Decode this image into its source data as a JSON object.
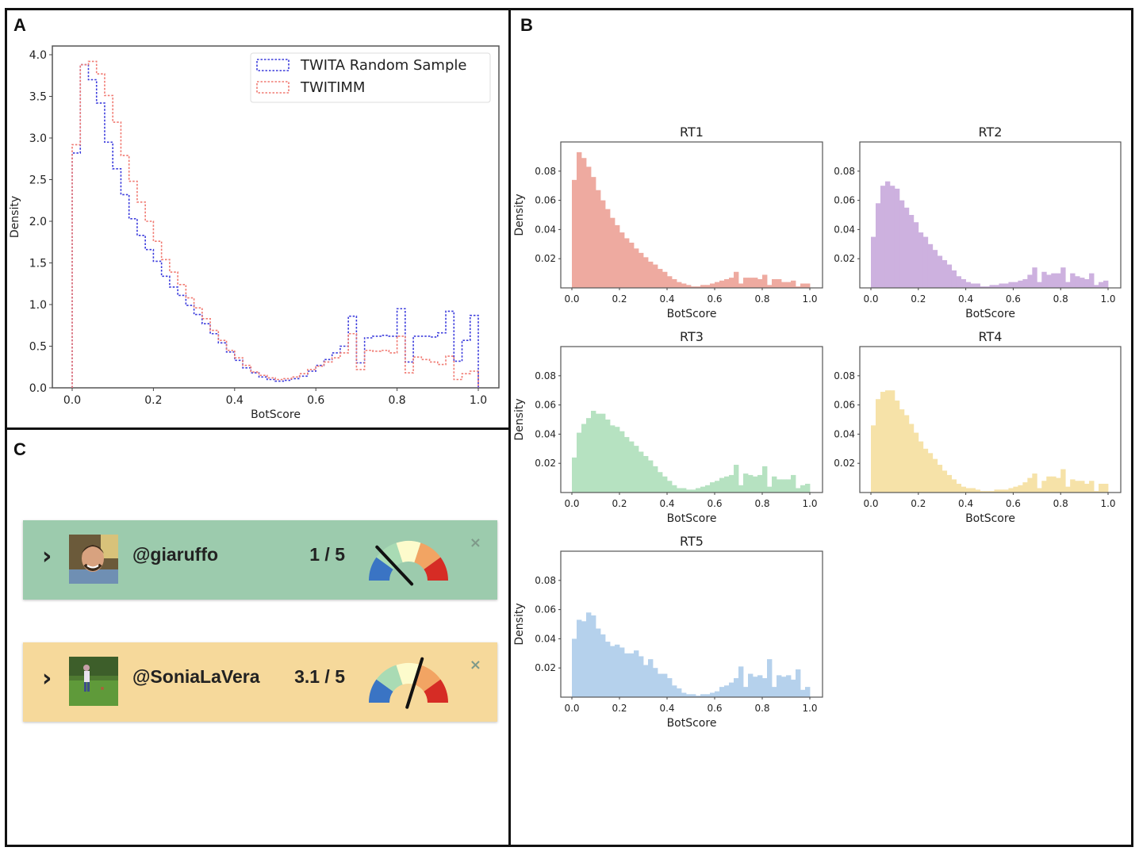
{
  "panels": {
    "a": "A",
    "b": "B",
    "c": "C"
  },
  "chart_data": [
    {
      "id": "panel-a",
      "type": "step-histogram",
      "title": "",
      "xlabel": "BotScore",
      "ylabel": "Density",
      "xlim": [
        0.0,
        1.0
      ],
      "ylim": [
        0.0,
        4.0
      ],
      "xticks": [
        "0.0",
        "0.2",
        "0.4",
        "0.6",
        "0.8",
        "1.0"
      ],
      "yticks": [
        "0.0",
        "0.5",
        "1.0",
        "1.5",
        "2.0",
        "2.5",
        "3.0",
        "3.5",
        "4.0"
      ],
      "bin_width": 0.02,
      "legend": "top-right",
      "series": [
        {
          "name": "TWITA Random Sample",
          "color": "#3b3bdc",
          "values": [
            2.82,
            3.88,
            3.7,
            3.42,
            2.95,
            2.63,
            2.32,
            2.03,
            1.83,
            1.66,
            1.52,
            1.34,
            1.21,
            1.11,
            0.99,
            0.88,
            0.77,
            0.65,
            0.54,
            0.43,
            0.33,
            0.24,
            0.18,
            0.13,
            0.1,
            0.08,
            0.09,
            0.11,
            0.14,
            0.2,
            0.27,
            0.34,
            0.42,
            0.5,
            0.86,
            0.3,
            0.6,
            0.62,
            0.63,
            0.62,
            0.95,
            0.31,
            0.62,
            0.62,
            0.61,
            0.66,
            0.92,
            0.32,
            0.57,
            0.87
          ]
        },
        {
          "name": "TWITIMM",
          "color": "#f07a72",
          "values": [
            2.92,
            3.88,
            3.92,
            3.77,
            3.51,
            3.19,
            2.79,
            2.48,
            2.23,
            2.0,
            1.76,
            1.54,
            1.39,
            1.24,
            1.08,
            0.96,
            0.83,
            0.69,
            0.57,
            0.45,
            0.36,
            0.27,
            0.19,
            0.15,
            0.12,
            0.1,
            0.11,
            0.13,
            0.17,
            0.22,
            0.26,
            0.31,
            0.36,
            0.42,
            0.65,
            0.22,
            0.45,
            0.44,
            0.45,
            0.42,
            0.62,
            0.18,
            0.37,
            0.34,
            0.31,
            0.28,
            0.38,
            0.1,
            0.17,
            0.2
          ]
        }
      ]
    },
    {
      "id": "rt1",
      "type": "bar",
      "title": "RT1",
      "xlabel": "BotScore",
      "ylabel": "Density",
      "show_ylabel": true,
      "xlim": [
        0.0,
        1.0
      ],
      "ylim": [
        0.0,
        0.1
      ],
      "bin_width": 0.02,
      "xticks": [
        "0.0",
        "0.2",
        "0.4",
        "0.6",
        "0.8",
        "1.0"
      ],
      "yticks": [
        "0.02",
        "0.04",
        "0.06",
        "0.08"
      ],
      "color": "#eeaaa0",
      "values": [
        0.074,
        0.093,
        0.089,
        0.083,
        0.076,
        0.067,
        0.06,
        0.054,
        0.048,
        0.043,
        0.038,
        0.034,
        0.031,
        0.027,
        0.024,
        0.021,
        0.018,
        0.016,
        0.013,
        0.011,
        0.008,
        0.006,
        0.004,
        0.003,
        0.002,
        0.001,
        0.001,
        0.002,
        0.002,
        0.003,
        0.004,
        0.005,
        0.006,
        0.007,
        0.011,
        0.003,
        0.007,
        0.007,
        0.007,
        0.006,
        0.009,
        0.002,
        0.006,
        0.006,
        0.004,
        0.004,
        0.005,
        0.001,
        0.003,
        0.003
      ]
    },
    {
      "id": "rt2",
      "type": "bar",
      "title": "RT2",
      "xlabel": "BotScore",
      "ylabel": "",
      "show_ylabel": false,
      "xlim": [
        0.0,
        1.0
      ],
      "ylim": [
        0.0,
        0.1
      ],
      "bin_width": 0.02,
      "xticks": [
        "0.0",
        "0.2",
        "0.4",
        "0.6",
        "0.8",
        "1.0"
      ],
      "yticks": [
        "0.02",
        "0.04",
        "0.06",
        "0.08"
      ],
      "color": "#cdb1df",
      "values": [
        0.035,
        0.058,
        0.07,
        0.073,
        0.07,
        0.068,
        0.06,
        0.055,
        0.05,
        0.045,
        0.038,
        0.035,
        0.03,
        0.026,
        0.022,
        0.019,
        0.016,
        0.012,
        0.008,
        0.006,
        0.004,
        0.003,
        0.003,
        0.001,
        0.001,
        0.002,
        0.002,
        0.003,
        0.003,
        0.004,
        0.004,
        0.005,
        0.006,
        0.009,
        0.014,
        0.004,
        0.011,
        0.009,
        0.01,
        0.01,
        0.014,
        0.004,
        0.01,
        0.008,
        0.007,
        0.006,
        0.01,
        0.002,
        0.004,
        0.005
      ]
    },
    {
      "id": "rt3",
      "type": "bar",
      "title": "RT3",
      "xlabel": "BotScore",
      "ylabel": "Density",
      "show_ylabel": true,
      "xlim": [
        0.0,
        1.0
      ],
      "ylim": [
        0.0,
        0.1
      ],
      "bin_width": 0.02,
      "xticks": [
        "0.0",
        "0.2",
        "0.4",
        "0.6",
        "0.8",
        "1.0"
      ],
      "yticks": [
        "0.02",
        "0.04",
        "0.06",
        "0.08"
      ],
      "color": "#b6e2c1",
      "values": [
        0.024,
        0.041,
        0.047,
        0.051,
        0.056,
        0.054,
        0.054,
        0.05,
        0.046,
        0.045,
        0.042,
        0.038,
        0.035,
        0.032,
        0.028,
        0.025,
        0.022,
        0.018,
        0.014,
        0.011,
        0.008,
        0.005,
        0.003,
        0.003,
        0.002,
        0.002,
        0.003,
        0.004,
        0.005,
        0.007,
        0.008,
        0.01,
        0.011,
        0.012,
        0.019,
        0.005,
        0.013,
        0.012,
        0.011,
        0.012,
        0.018,
        0.004,
        0.011,
        0.009,
        0.009,
        0.009,
        0.012,
        0.003,
        0.005,
        0.006
      ]
    },
    {
      "id": "rt4",
      "type": "bar",
      "title": "RT4",
      "xlabel": "BotScore",
      "ylabel": "",
      "show_ylabel": false,
      "xlim": [
        0.0,
        1.0
      ],
      "ylim": [
        0.0,
        0.1
      ],
      "bin_width": 0.02,
      "xticks": [
        "0.0",
        "0.2",
        "0.4",
        "0.6",
        "0.8",
        "1.0"
      ],
      "yticks": [
        "0.02",
        "0.04",
        "0.06",
        "0.08"
      ],
      "color": "#f6e2a8",
      "values": [
        0.046,
        0.064,
        0.069,
        0.07,
        0.07,
        0.063,
        0.057,
        0.053,
        0.047,
        0.041,
        0.035,
        0.03,
        0.027,
        0.023,
        0.019,
        0.015,
        0.012,
        0.009,
        0.006,
        0.004,
        0.003,
        0.003,
        0.002,
        0.001,
        0.001,
        0.001,
        0.002,
        0.002,
        0.002,
        0.003,
        0.004,
        0.005,
        0.007,
        0.01,
        0.013,
        0.003,
        0.008,
        0.011,
        0.011,
        0.01,
        0.016,
        0.004,
        0.009,
        0.008,
        0.008,
        0.006,
        0.008,
        0.001,
        0.006,
        0.006
      ]
    },
    {
      "id": "rt5",
      "type": "bar",
      "title": "RT5",
      "xlabel": "BotScore",
      "ylabel": "Density",
      "show_ylabel": true,
      "xlim": [
        0.0,
        1.0
      ],
      "ylim": [
        0.0,
        0.1
      ],
      "bin_width": 0.02,
      "xticks": [
        "0.0",
        "0.2",
        "0.4",
        "0.6",
        "0.8",
        "1.0"
      ],
      "yticks": [
        "0.02",
        "0.04",
        "0.06",
        "0.08"
      ],
      "color": "#b5d1ec",
      "values": [
        0.04,
        0.053,
        0.052,
        0.058,
        0.056,
        0.047,
        0.043,
        0.038,
        0.035,
        0.036,
        0.034,
        0.03,
        0.03,
        0.032,
        0.028,
        0.022,
        0.026,
        0.02,
        0.016,
        0.016,
        0.013,
        0.008,
        0.006,
        0.003,
        0.002,
        0.002,
        0.001,
        0.002,
        0.002,
        0.003,
        0.004,
        0.007,
        0.008,
        0.01,
        0.013,
        0.021,
        0.007,
        0.016,
        0.014,
        0.015,
        0.013,
        0.026,
        0.007,
        0.015,
        0.014,
        0.015,
        0.012,
        0.019,
        0.005,
        0.007
      ]
    }
  ],
  "cards": [
    {
      "chevron": "›",
      "handle": "@giaruffo",
      "score": "1 / 5",
      "score_value": 1.0,
      "score_max": 5,
      "bg": "#9ccbad",
      "close": "×",
      "avatar": "person-portrait"
    },
    {
      "chevron": "›",
      "handle": "@SoniaLaVera",
      "score": "3.1 / 5",
      "score_value": 3.1,
      "score_max": 5,
      "bg": "#f6d99b",
      "close": "×",
      "avatar": "outdoor-photo"
    }
  ],
  "gauge_colors": [
    "#3a74c4",
    "#a9dbb4",
    "#fdfbcc",
    "#f2a463",
    "#d62c25"
  ]
}
